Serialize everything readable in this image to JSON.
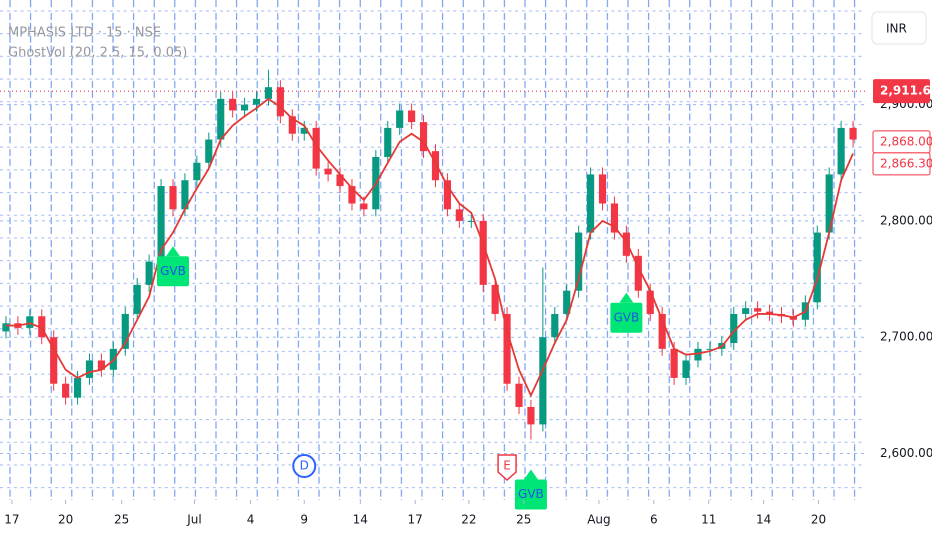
{
  "chart_data": {
    "type": "candlestick",
    "title": "MPHASIS LTD · 15 · NSE",
    "subtitle": "GhostVol (20, 2.5, 15, 0.05)",
    "currency": "INR",
    "up_color": "#089981",
    "down_color": "#f23645",
    "opens": [
      2705,
      2712,
      2708,
      2718,
      2700,
      2660,
      2648,
      2665,
      2680,
      2672,
      2690,
      2720,
      2745,
      2765,
      2830,
      2810,
      2835,
      2850,
      2870,
      2905,
      2895,
      2900,
      2905,
      2915,
      2890,
      2875,
      2880,
      2845,
      2840,
      2830,
      2815,
      2810,
      2855,
      2880,
      2895,
      2885,
      2860,
      2835,
      2810,
      2800,
      2800,
      2745,
      2720,
      2660,
      2640,
      2625,
      2700,
      2720,
      2740,
      2790,
      2840,
      2815,
      2790,
      2770,
      2740,
      2720,
      2690,
      2665,
      2680,
      2690,
      2690,
      2695,
      2720,
      2725,
      2722,
      2720,
      2718,
      2715,
      2730,
      2790,
      2840,
      2880
    ],
    "highs": [
      2718,
      2718,
      2724,
      2724,
      2706,
      2666,
      2671,
      2686,
      2686,
      2696,
      2726,
      2751,
      2771,
      2836,
      2836,
      2841,
      2856,
      2876,
      2911,
      2911,
      2906,
      2911,
      2930,
      2921,
      2896,
      2886,
      2886,
      2851,
      2846,
      2836,
      2821,
      2861,
      2886,
      2901,
      2901,
      2891,
      2866,
      2841,
      2816,
      2806,
      2806,
      2751,
      2726,
      2666,
      2646,
      2760,
      2726,
      2746,
      2796,
      2846,
      2846,
      2821,
      2796,
      2776,
      2746,
      2726,
      2696,
      2686,
      2696,
      2696,
      2701,
      2726,
      2731,
      2731,
      2728,
      2726,
      2724,
      2736,
      2796,
      2846,
      2886,
      2886
    ],
    "lows": [
      2699,
      2702,
      2702,
      2694,
      2654,
      2642,
      2642,
      2659,
      2666,
      2666,
      2684,
      2714,
      2739,
      2759,
      2804,
      2804,
      2829,
      2844,
      2864,
      2889,
      2889,
      2894,
      2899,
      2884,
      2869,
      2869,
      2839,
      2834,
      2824,
      2809,
      2804,
      2804,
      2849,
      2874,
      2879,
      2854,
      2829,
      2804,
      2794,
      2794,
      2739,
      2714,
      2654,
      2634,
      2612,
      2619,
      2694,
      2714,
      2734,
      2784,
      2809,
      2784,
      2764,
      2734,
      2714,
      2684,
      2659,
      2659,
      2674,
      2684,
      2684,
      2689,
      2714,
      2716,
      2714,
      2712,
      2709,
      2709,
      2724,
      2784,
      2834,
      2864
    ],
    "closes": [
      2712,
      2708,
      2718,
      2700,
      2660,
      2648,
      2665,
      2680,
      2672,
      2690,
      2720,
      2745,
      2765,
      2830,
      2810,
      2835,
      2850,
      2870,
      2905,
      2895,
      2900,
      2905,
      2915,
      2890,
      2875,
      2880,
      2845,
      2840,
      2830,
      2815,
      2810,
      2855,
      2880,
      2895,
      2885,
      2860,
      2835,
      2810,
      2800,
      2800,
      2745,
      2720,
      2660,
      2640,
      2625,
      2700,
      2720,
      2740,
      2790,
      2840,
      2815,
      2790,
      2770,
      2740,
      2720,
      2690,
      2665,
      2680,
      2690,
      2690,
      2695,
      2720,
      2725,
      2722,
      2720,
      2718,
      2715,
      2730,
      2790,
      2840,
      2880,
      2870
    ],
    "ma": {
      "color": "#e53935",
      "values": [
        2710,
        2710,
        2712,
        2708,
        2690,
        2672,
        2665,
        2670,
        2672,
        2680,
        2695,
        2715,
        2735,
        2775,
        2790,
        2810,
        2828,
        2845,
        2870,
        2882,
        2890,
        2897,
        2905,
        2898,
        2888,
        2882,
        2865,
        2852,
        2840,
        2828,
        2818,
        2832,
        2850,
        2868,
        2875,
        2868,
        2850,
        2830,
        2815,
        2807,
        2780,
        2750,
        2705,
        2672,
        2650,
        2672,
        2695,
        2715,
        2750,
        2790,
        2800,
        2795,
        2782,
        2760,
        2740,
        2715,
        2690,
        2685,
        2686,
        2688,
        2692,
        2705,
        2715,
        2720,
        2720,
        2719,
        2717,
        2722,
        2750,
        2790,
        2835,
        2858
      ]
    },
    "xlim": [
      -0.5,
      72
    ],
    "ylim": [
      2560,
      2990
    ],
    "yticks": [
      {
        "value": 2600,
        "label": "2,600.00"
      },
      {
        "value": 2700,
        "label": "2,700.00"
      },
      {
        "value": 2800,
        "label": "2,800.00"
      },
      {
        "value": 2900,
        "label": "2,900.00"
      }
    ],
    "xticks": [
      {
        "value": 0.5,
        "label": "17"
      },
      {
        "value": 5,
        "label": "20"
      },
      {
        "value": 9.7,
        "label": "25"
      },
      {
        "value": 15.8,
        "label": "Jul"
      },
      {
        "value": 20.5,
        "label": "4"
      },
      {
        "value": 25,
        "label": "9"
      },
      {
        "value": 29.7,
        "label": "14"
      },
      {
        "value": 34.3,
        "label": "17"
      },
      {
        "value": 38.8,
        "label": "22"
      },
      {
        "value": 43.4,
        "label": "25"
      },
      {
        "value": 49.7,
        "label": "Aug"
      },
      {
        "value": 54.3,
        "label": "6"
      },
      {
        "value": 58.9,
        "label": "11"
      },
      {
        "value": 63.5,
        "label": "14"
      },
      {
        "value": 68.1,
        "label": "20"
      }
    ],
    "price_line": {
      "value": 2911.6,
      "label": "2,911.60"
    },
    "last_labels": [
      {
        "value": 2868,
        "label": "2,868.00"
      },
      {
        "value": 2866.3,
        "label": "2,866.30"
      }
    ],
    "markers": [
      {
        "label": "GVB",
        "index": 14
      },
      {
        "label": "GVB",
        "index": 52
      },
      {
        "label": "GVB",
        "index": 44
      }
    ],
    "events": [
      {
        "label": "D",
        "index": 25
      },
      {
        "label": "E",
        "index": 42
      }
    ]
  }
}
